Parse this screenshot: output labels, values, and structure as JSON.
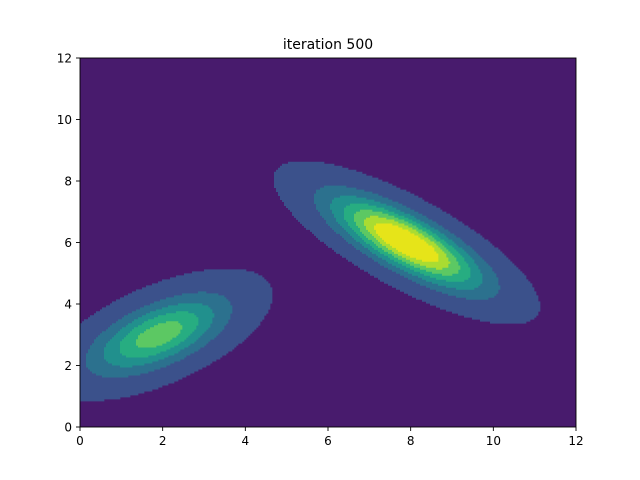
{
  "chart_data": {
    "type": "contour",
    "title": "iteration 500",
    "xlabel": "",
    "ylabel": "",
    "xlim": [
      0,
      12
    ],
    "ylim": [
      0,
      12
    ],
    "x_ticks": [
      "0",
      "2",
      "4",
      "6",
      "8",
      "10",
      "12"
    ],
    "y_ticks": [
      "0",
      "2",
      "4",
      "6",
      "8",
      "10",
      "12"
    ],
    "grid": false,
    "colormap": "viridis",
    "components": [
      {
        "mean": [
          1.9,
          3.0
        ],
        "sx": 1.05,
        "sy": 0.82,
        "corr": 0.6,
        "weight": 0.62
      },
      {
        "mean": [
          7.9,
          6.0
        ],
        "sx": 1.15,
        "sy": 0.95,
        "corr": -0.78,
        "weight": 1.0
      }
    ],
    "levels": [
      0.02,
      0.15,
      0.28,
      0.41,
      0.54,
      0.67,
      0.8
    ],
    "level_colors": [
      "#472c7a",
      "#3b518b",
      "#2c718e",
      "#21908d",
      "#27ad81",
      "#5cc863",
      "#aadc32",
      "#e6e419"
    ],
    "background_color": "#481b6d"
  }
}
